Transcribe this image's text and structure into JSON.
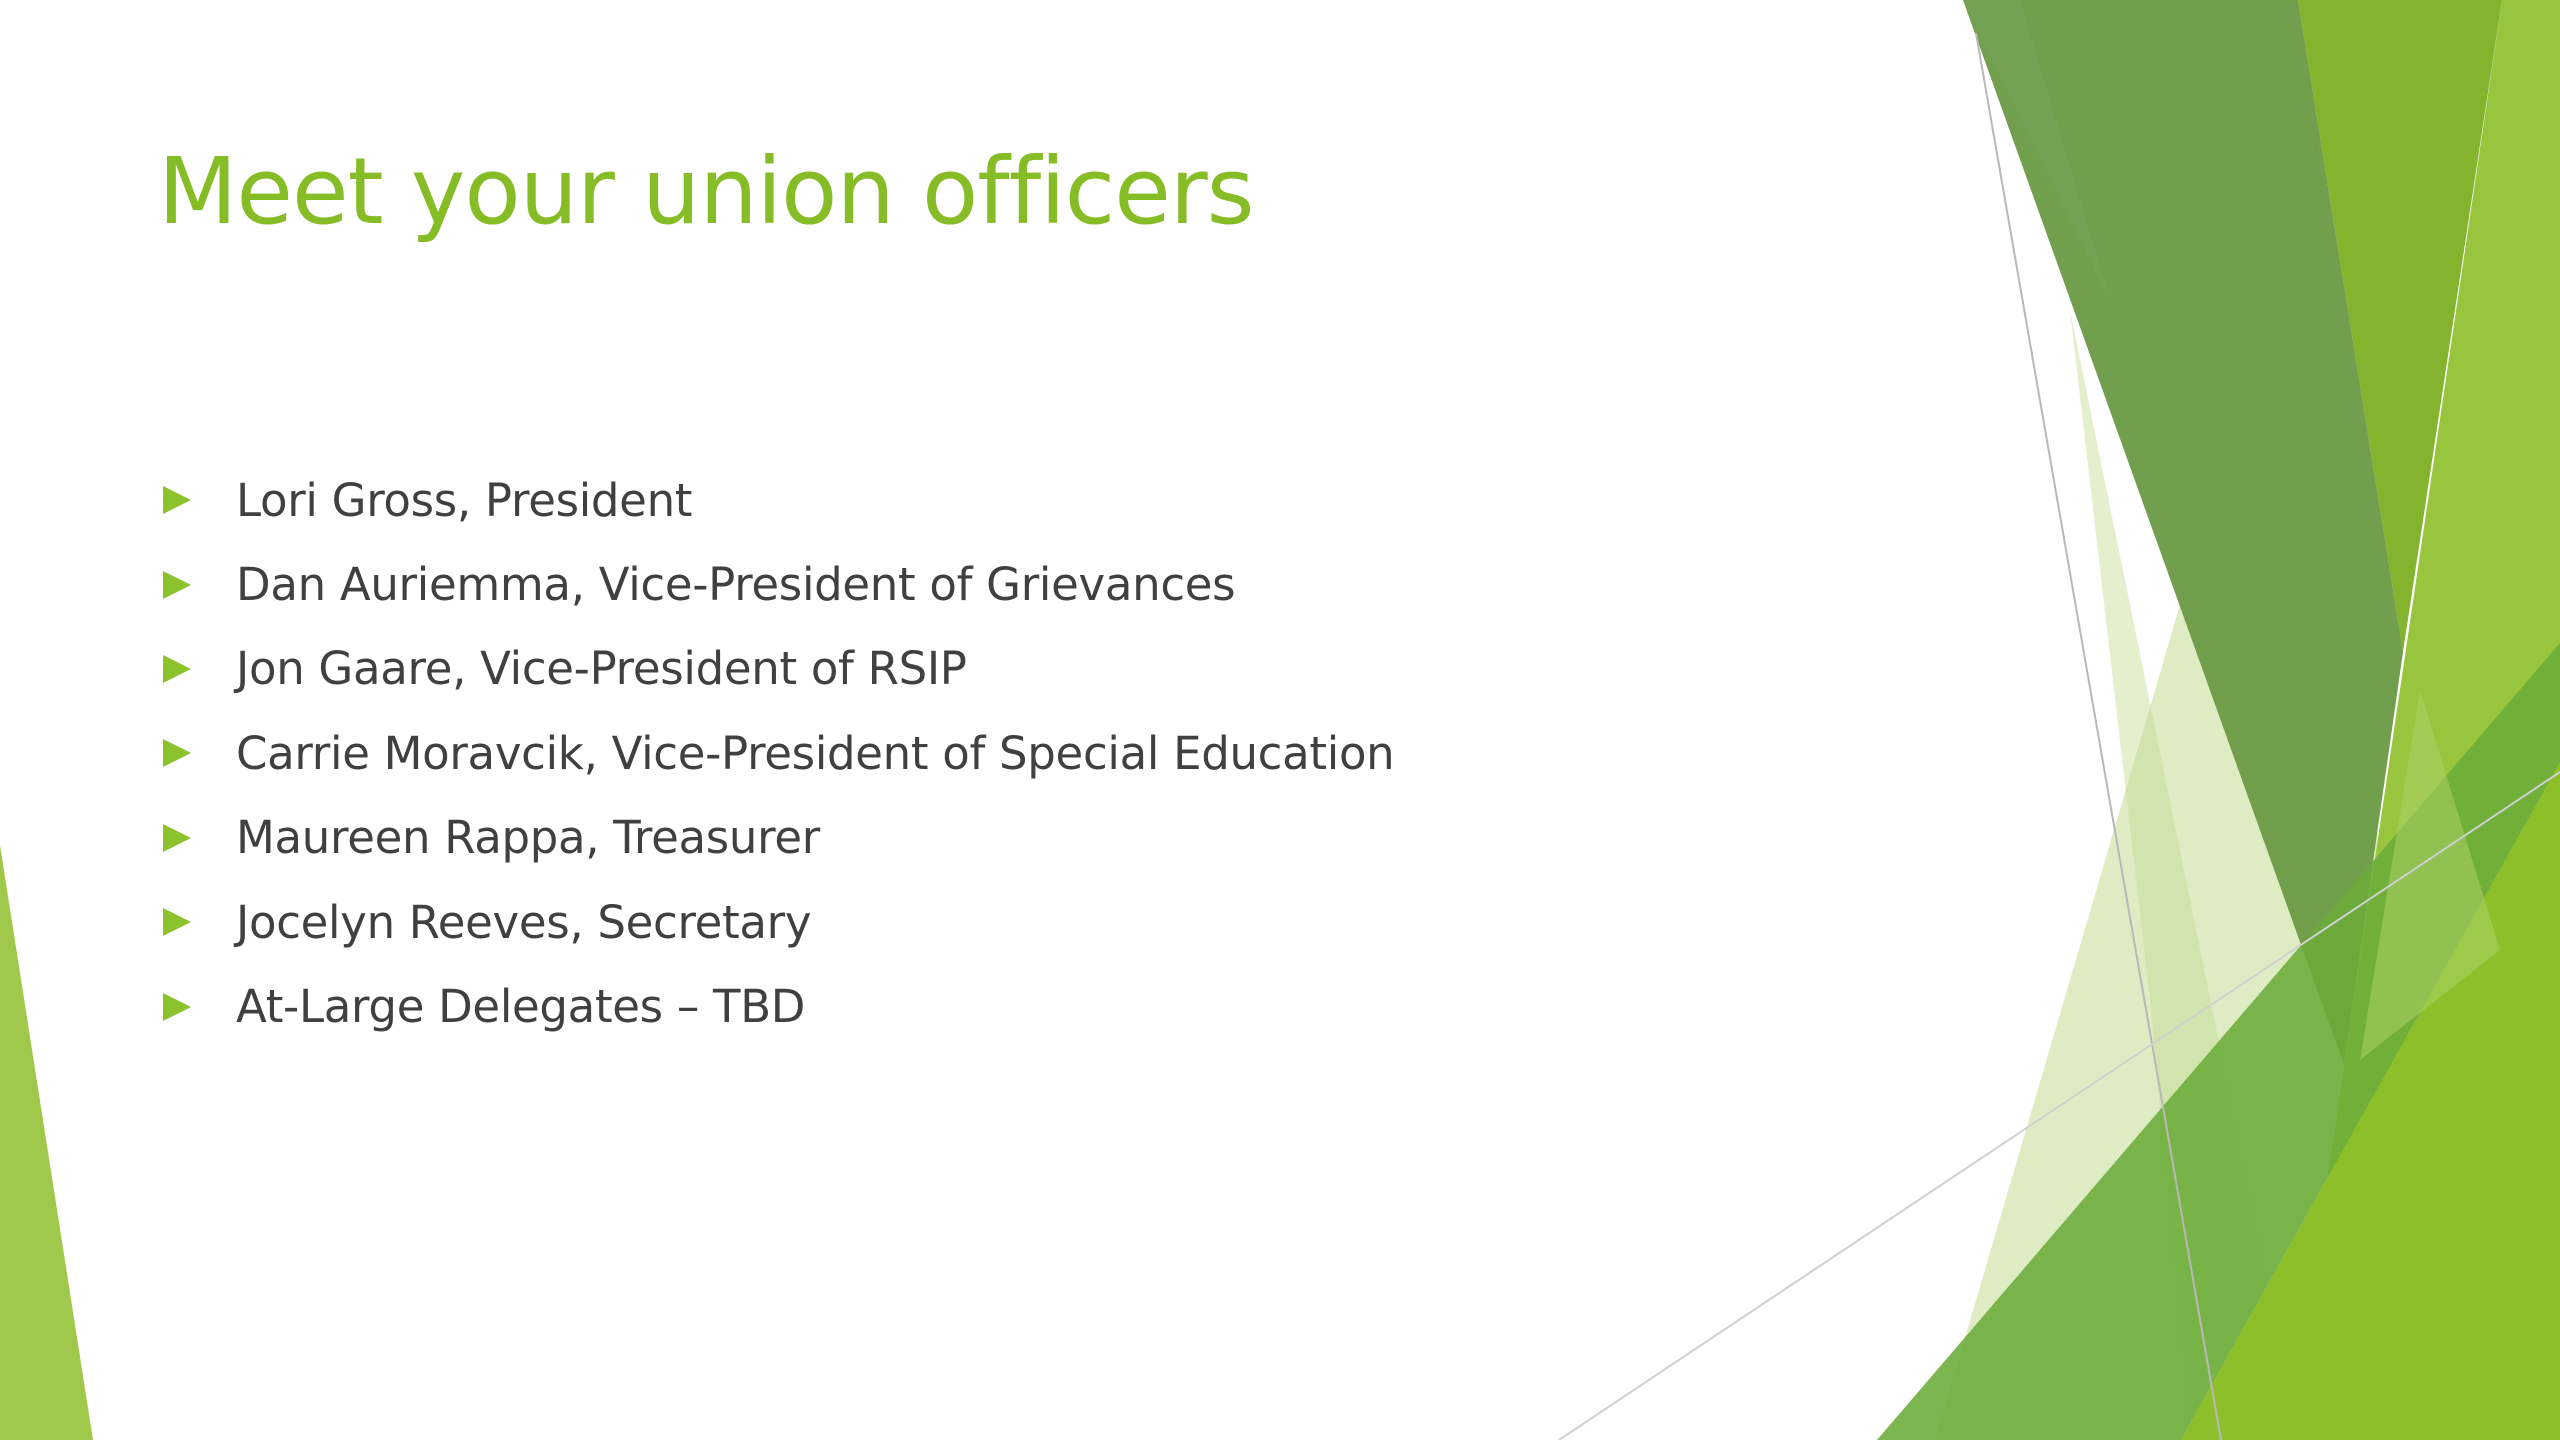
{
  "slide": {
    "title": "Meet your union officers",
    "bullets": [
      "Lori Gross, President",
      "Dan Auriemma, Vice-President of Grievances",
      "Jon Gaare, Vice-President of RSIP",
      "Carrie Moravcik, Vice-President of Special Education",
      "Maureen Rappa, Treasurer",
      "Jocelyn Reeves, Secretary",
      "At-Large Delegates – TBD"
    ],
    "bullet_icon": "triangle-right-icon"
  },
  "colors": {
    "title": "#86bc25",
    "text": "#404040",
    "bullet": "#8cc22c",
    "dark_green": "#6e9e48",
    "mid_green": "#84b42e",
    "light_green": "#98c43e",
    "pale_green": "#dfebc4"
  }
}
